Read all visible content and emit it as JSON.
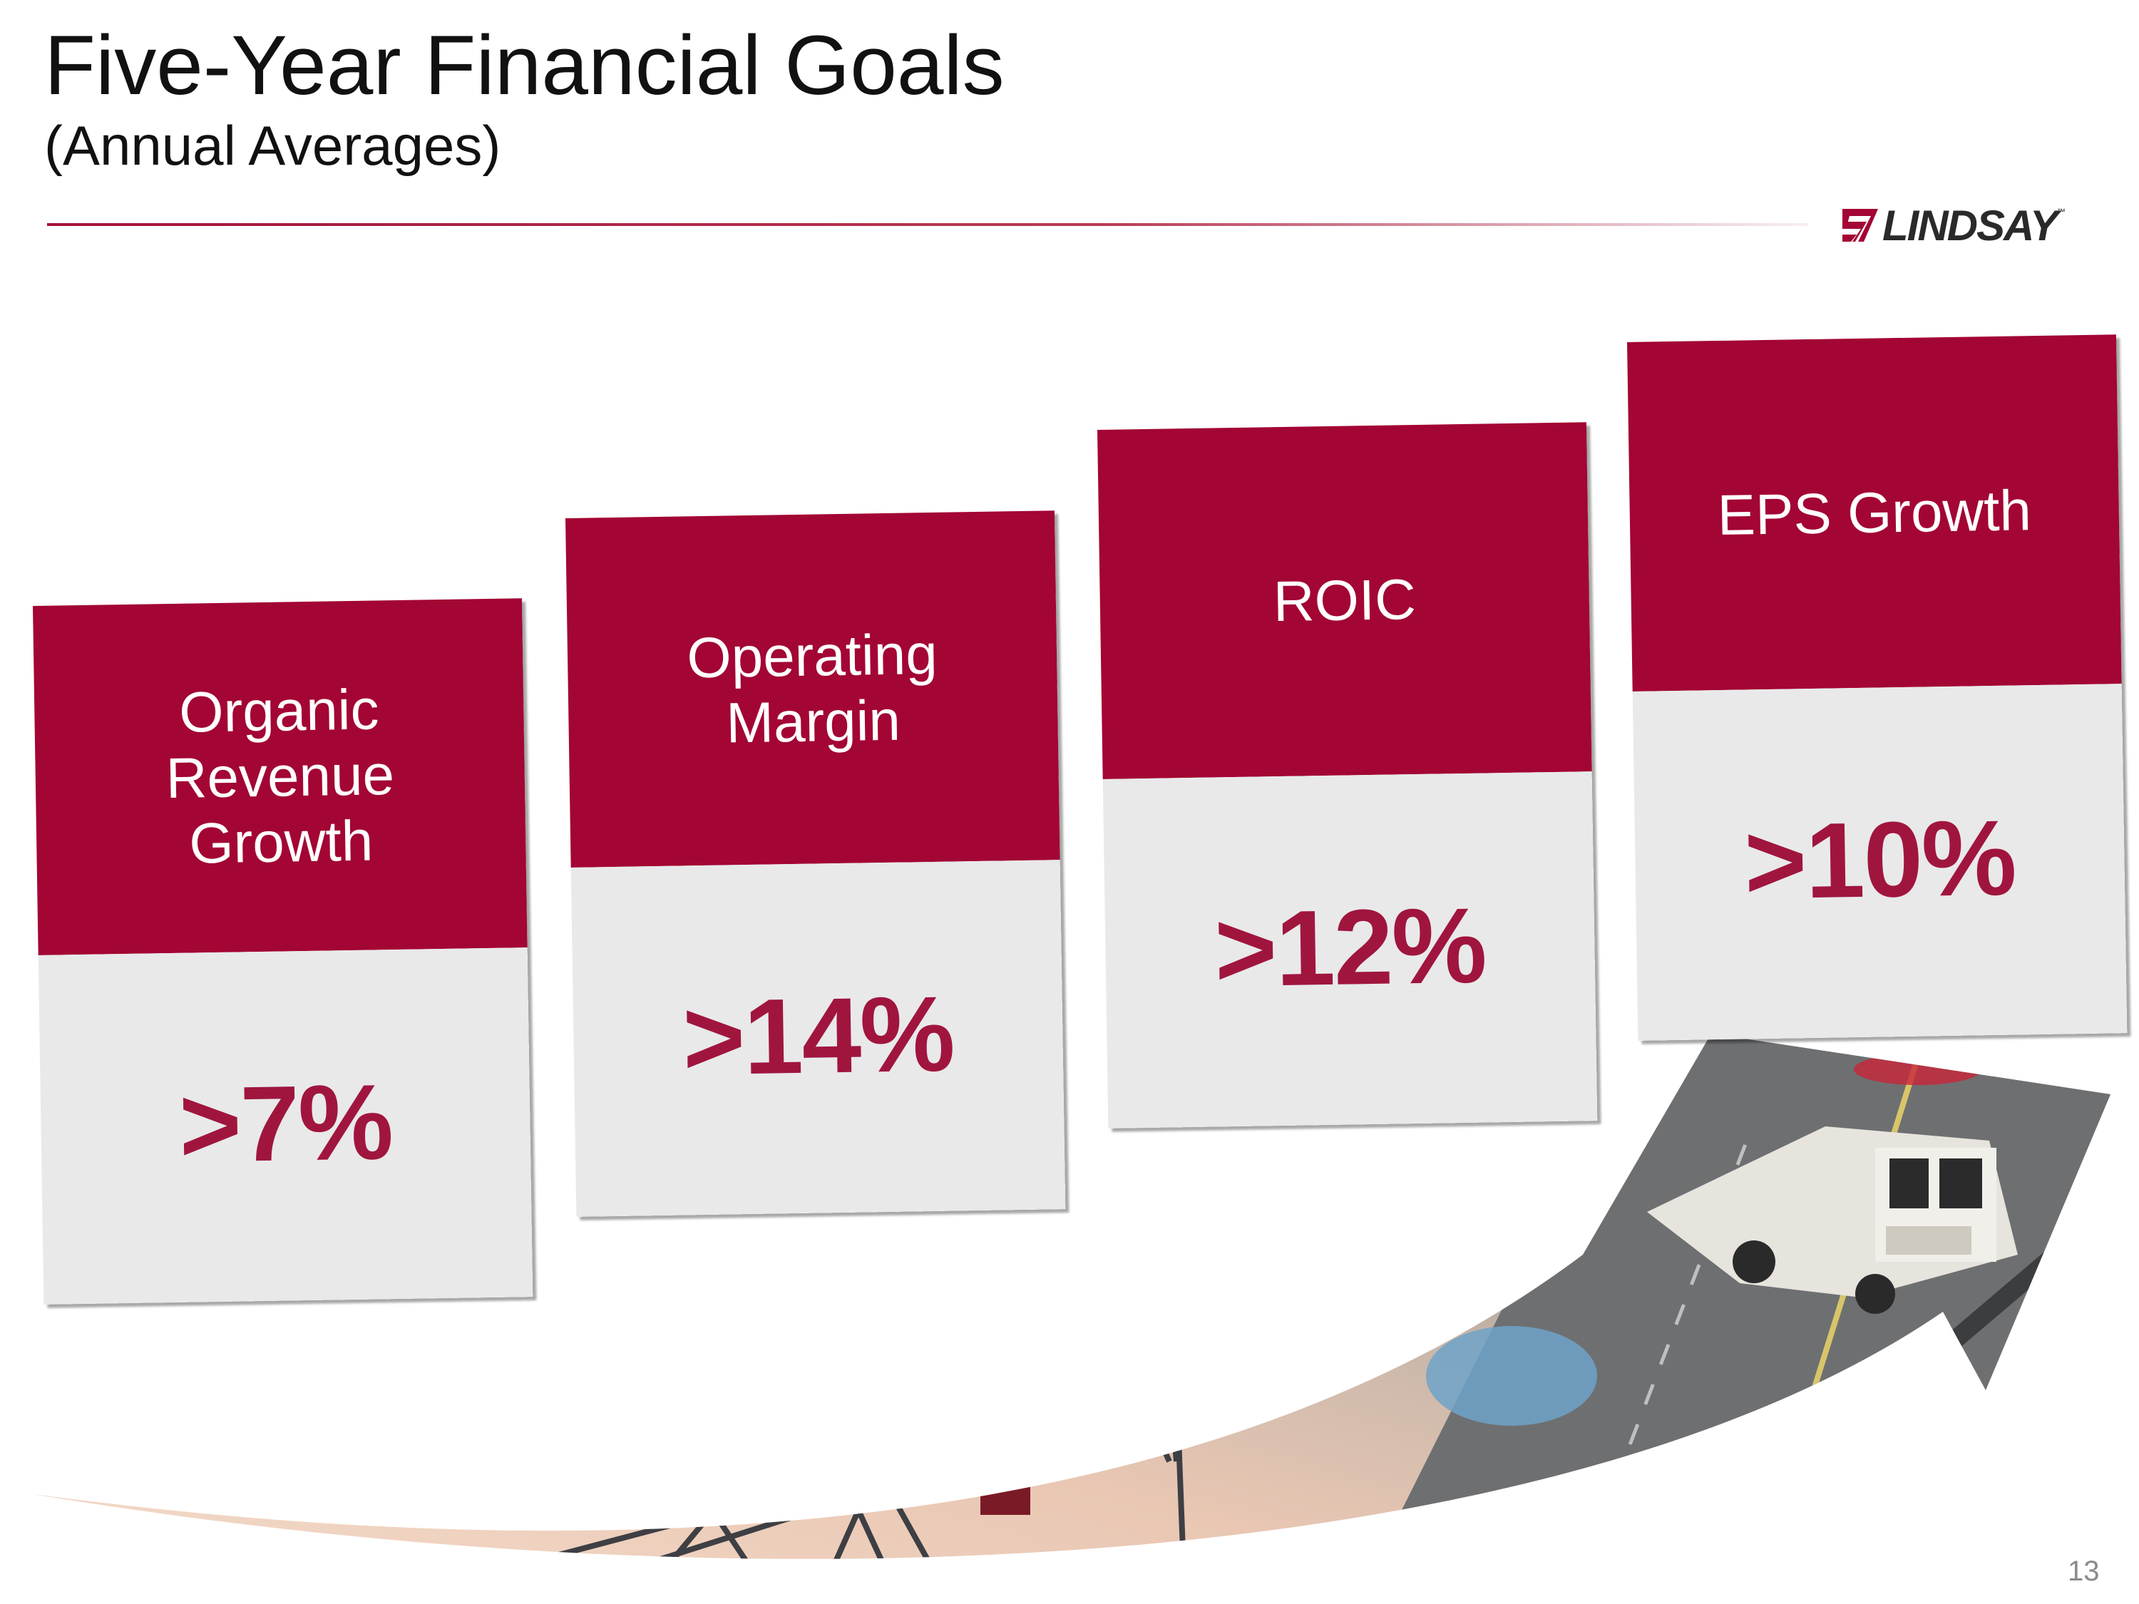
{
  "title": "Five-Year Financial Goals",
  "subtitle": "(Annual Averages)",
  "logo": {
    "text": "LINDSAY",
    "trademark": "™"
  },
  "cards": [
    {
      "label": "Organic Revenue Growth",
      "value": ">7%"
    },
    {
      "label": "Operating Margin",
      "value": ">14%"
    },
    {
      "label": "ROIC",
      "value": ">12%"
    },
    {
      "label": "EPS Growth",
      "value": ">10%"
    }
  ],
  "page_number": "13",
  "colors": {
    "brand": "#a30534",
    "value_text": "#a0153e",
    "card_bottom": "#e9e9ea"
  },
  "icons": [
    "lindsay-logo-icon",
    "growth-arrow-image",
    "center-pivot-irrigation-image",
    "road-truck-image"
  ]
}
